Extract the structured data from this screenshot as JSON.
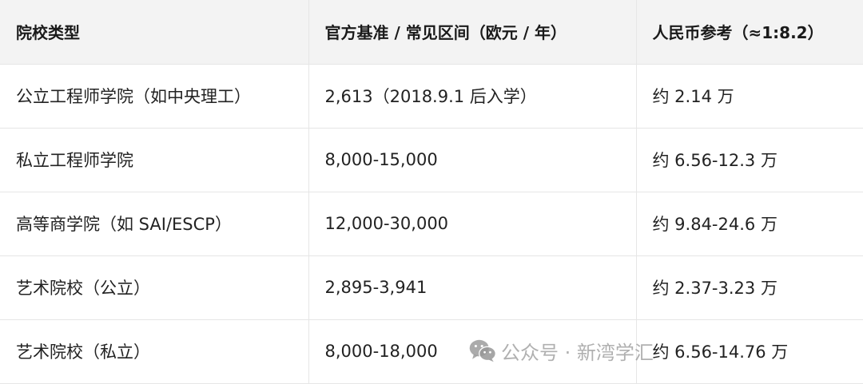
{
  "table": {
    "headers": [
      "院校类型",
      "官方基准 / 常见区间（欧元 / 年）",
      "人民币参考（≈1:8.2）"
    ],
    "rows": [
      [
        "公立工程师学院（如中央理工）",
        "2,613（2018.9.1 后入学）",
        "约 2.14 万"
      ],
      [
        "私立工程师学院",
        "8,000-15,000",
        "约 6.56-12.3 万"
      ],
      [
        "高等商学院（如 SAI/ESCP）",
        "12,000-30,000",
        "约 9.84-24.6 万"
      ],
      [
        "艺术院校（公立）",
        "2,895-3,941",
        "约 2.37-3.23 万"
      ],
      [
        "艺术院校（私立）",
        "8,000-18,000",
        "约 6.56-14.76 万"
      ]
    ]
  },
  "watermark": {
    "icon": "wechat-icon",
    "text": "公众号 · 新湾学汇"
  }
}
